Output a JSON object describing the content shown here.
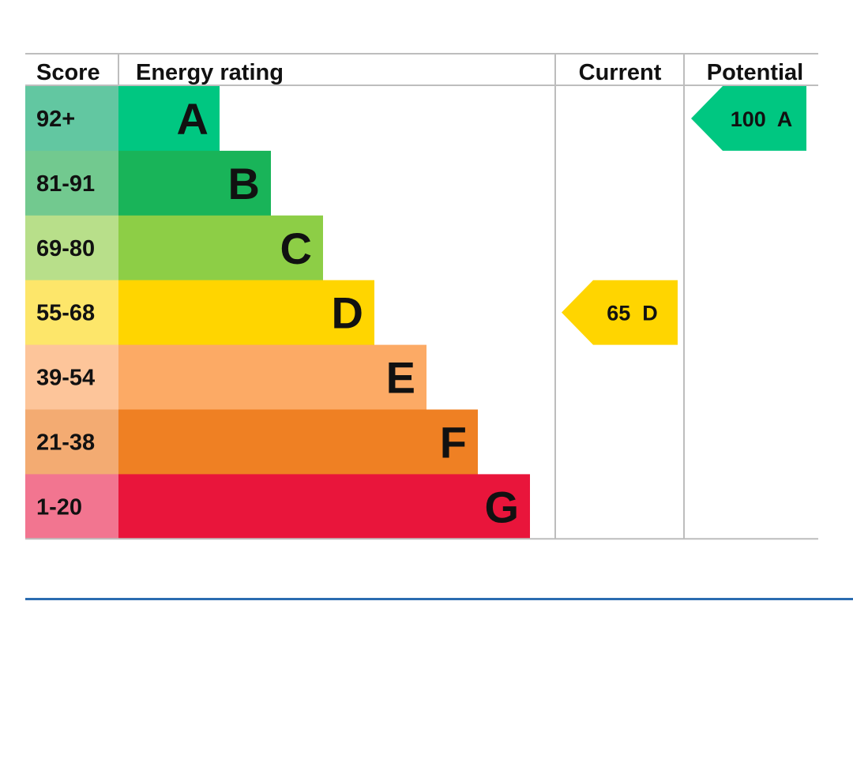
{
  "chart_data": {
    "type": "bar",
    "headers": {
      "score": "Score",
      "rating": "Energy rating",
      "current": "Current",
      "potential": "Potential"
    },
    "bands": [
      {
        "score": "92+",
        "letter": "A",
        "bar_color": "#00c781",
        "score_bg": "#62c7a1"
      },
      {
        "score": "81-91",
        "letter": "B",
        "bar_color": "#19b459",
        "score_bg": "#72c98f"
      },
      {
        "score": "69-80",
        "letter": "C",
        "bar_color": "#8dce46",
        "score_bg": "#b8df8a"
      },
      {
        "score": "55-68",
        "letter": "D",
        "bar_color": "#ffd500",
        "score_bg": "#fde66a"
      },
      {
        "score": "39-54",
        "letter": "E",
        "bar_color": "#fcaa65",
        "score_bg": "#fdc59a"
      },
      {
        "score": "21-38",
        "letter": "F",
        "bar_color": "#ef8023",
        "score_bg": "#f3ab72"
      },
      {
        "score": "1-20",
        "letter": "G",
        "bar_color": "#e9153b",
        "score_bg": "#f27590"
      }
    ],
    "current": {
      "value": 65,
      "letter": "D",
      "label": "65  D",
      "color": "#ffd500"
    },
    "potential": {
      "value": 100,
      "letter": "A",
      "label": "100  A",
      "color": "#00c781"
    }
  },
  "colors": {
    "grid": "#bdbdbd",
    "text": "#111111",
    "divider": "#2b6cb0"
  }
}
